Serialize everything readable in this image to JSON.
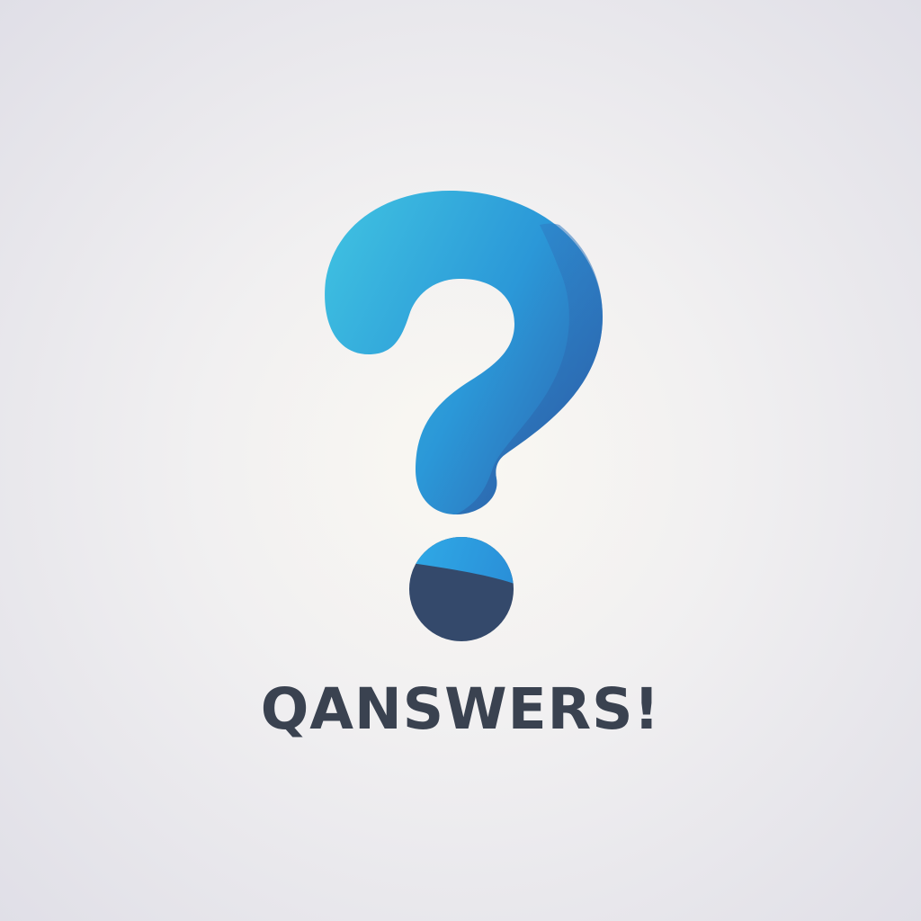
{
  "logo": {
    "icon": "question-mark-icon",
    "wordmark": "QANSWERS!"
  },
  "colors": {
    "background_center": "#faf8f2",
    "background_edge": "#e0dfe7",
    "question_light": "#3dbde0",
    "question_mid": "#2b8fd0",
    "question_dark": "#2d5fa5",
    "dot_top": "#2aa3e2",
    "dot_bottom": "#34496b",
    "wordmark": "#3a4250"
  }
}
